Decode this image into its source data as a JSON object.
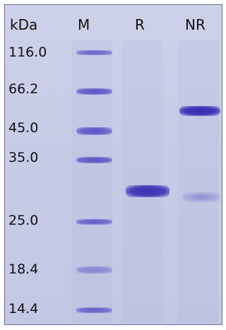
{
  "header": {
    "unit_label": "kDa",
    "lanes": [
      "M",
      "R",
      "NR"
    ]
  },
  "markers": [
    {
      "label": "116.0"
    },
    {
      "label": "66.2"
    },
    {
      "label": "45.0"
    },
    {
      "label": "35.0"
    },
    {
      "label": "25.0"
    },
    {
      "label": "18.4"
    },
    {
      "label": "14.4"
    }
  ],
  "colors": {
    "gel_background": "#c7cce6",
    "band_stain": "#3d2fb0"
  }
}
